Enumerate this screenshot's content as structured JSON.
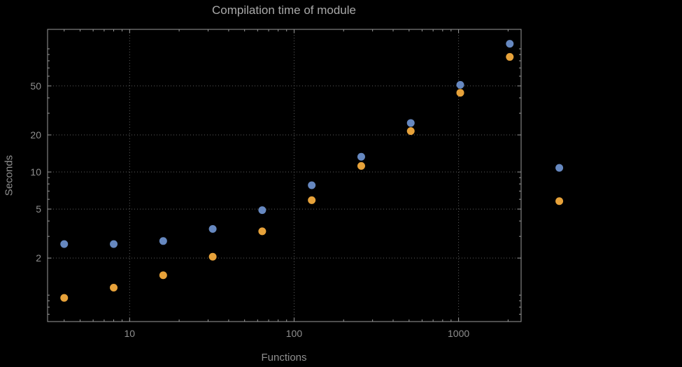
{
  "chart_data": {
    "type": "scatter",
    "title": "Compilation time of module",
    "xlabel": "Functions",
    "ylabel": "Seconds",
    "x_scale": "log",
    "y_scale": "log",
    "xlim": [
      3.17,
      2400
    ],
    "ylim": [
      0.61,
      144
    ],
    "x_ticks": [
      10,
      100,
      1000
    ],
    "y_ticks": [
      2,
      5,
      10,
      20,
      50
    ],
    "grid": "dotted",
    "legend": "none",
    "clipping": false,
    "series": [
      {
        "name": "series-1",
        "color": "#6688c0",
        "x": [
          4,
          8,
          16,
          32,
          64,
          128,
          256,
          512,
          1024,
          2048,
          4096
        ],
        "y": [
          2.6,
          2.6,
          2.75,
          3.45,
          4.9,
          7.8,
          13.3,
          25,
          51,
          110,
          10.8
        ]
      },
      {
        "name": "series-2",
        "color": "#e7a23a",
        "x": [
          4,
          8,
          16,
          32,
          64,
          128,
          256,
          512,
          1024,
          2048,
          4096
        ],
        "y": [
          0.95,
          1.15,
          1.45,
          2.05,
          3.3,
          5.9,
          11.2,
          21.5,
          44,
          86,
          5.8
        ]
      }
    ]
  },
  "styles": {
    "background": "#000000",
    "title_color": "#a9a9a9",
    "label_color": "#8f8f8f",
    "tick_label_color": "#8f8f8f",
    "frame_color": "#9a9a9a",
    "grid_color": "#5e5e5e"
  }
}
